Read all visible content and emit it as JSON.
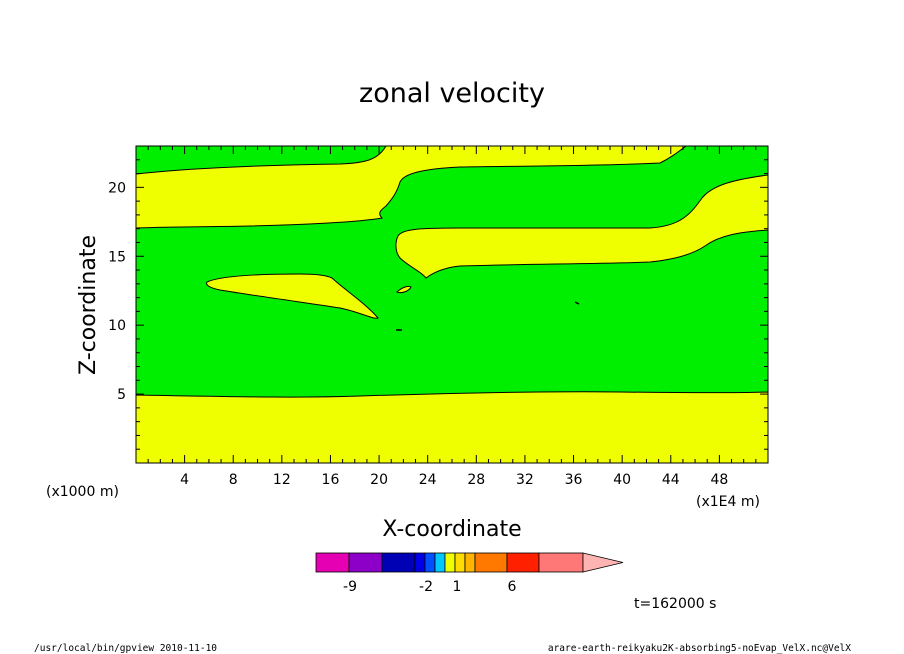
{
  "colors": {
    "yellow": "#f0ff00",
    "green": "#00ee00",
    "contour": "#000000"
  },
  "chart_data": {
    "type": "contour",
    "title": "zonal velocity",
    "xlabel": "X-coordinate",
    "ylabel": "Z-coordinate",
    "x_unit": "(x1E4 m)",
    "y_unit": "(x1000 m)",
    "xlim": [
      0,
      52
    ],
    "ylim": [
      0,
      23
    ],
    "xticks": [
      4,
      8,
      12,
      16,
      20,
      24,
      28,
      32,
      36,
      40,
      44,
      48
    ],
    "yticks": [
      5,
      10,
      15,
      20
    ],
    "grid": false,
    "regions": [
      {
        "level": "1 to 6",
        "color": "#f0ff00",
        "description_band": "lower layer z 0-5"
      },
      {
        "level": "-2 to 1",
        "color": "#00ee00",
        "description_band": "mid and upper layers"
      }
    ],
    "time_label": "t=162000 s",
    "colorbar": {
      "ticks": [
        "-9",
        "-2",
        "1",
        "6"
      ],
      "colors": [
        "#e600b4",
        "#8c00c8",
        "#0000b4",
        "#0000e6",
        "#0050ff",
        "#00c8ff",
        "#f0ff00",
        "#ffdc00",
        "#ffb400",
        "#ff7800",
        "#ff2000",
        "#ff7878",
        "#ffb4b4"
      ]
    }
  },
  "footer": {
    "left": "/usr/local/bin/gpview  2010-11-10",
    "right": "arare-earth-reikyaku2K-absorbing5-noEvap_VelX.nc@VelX"
  }
}
